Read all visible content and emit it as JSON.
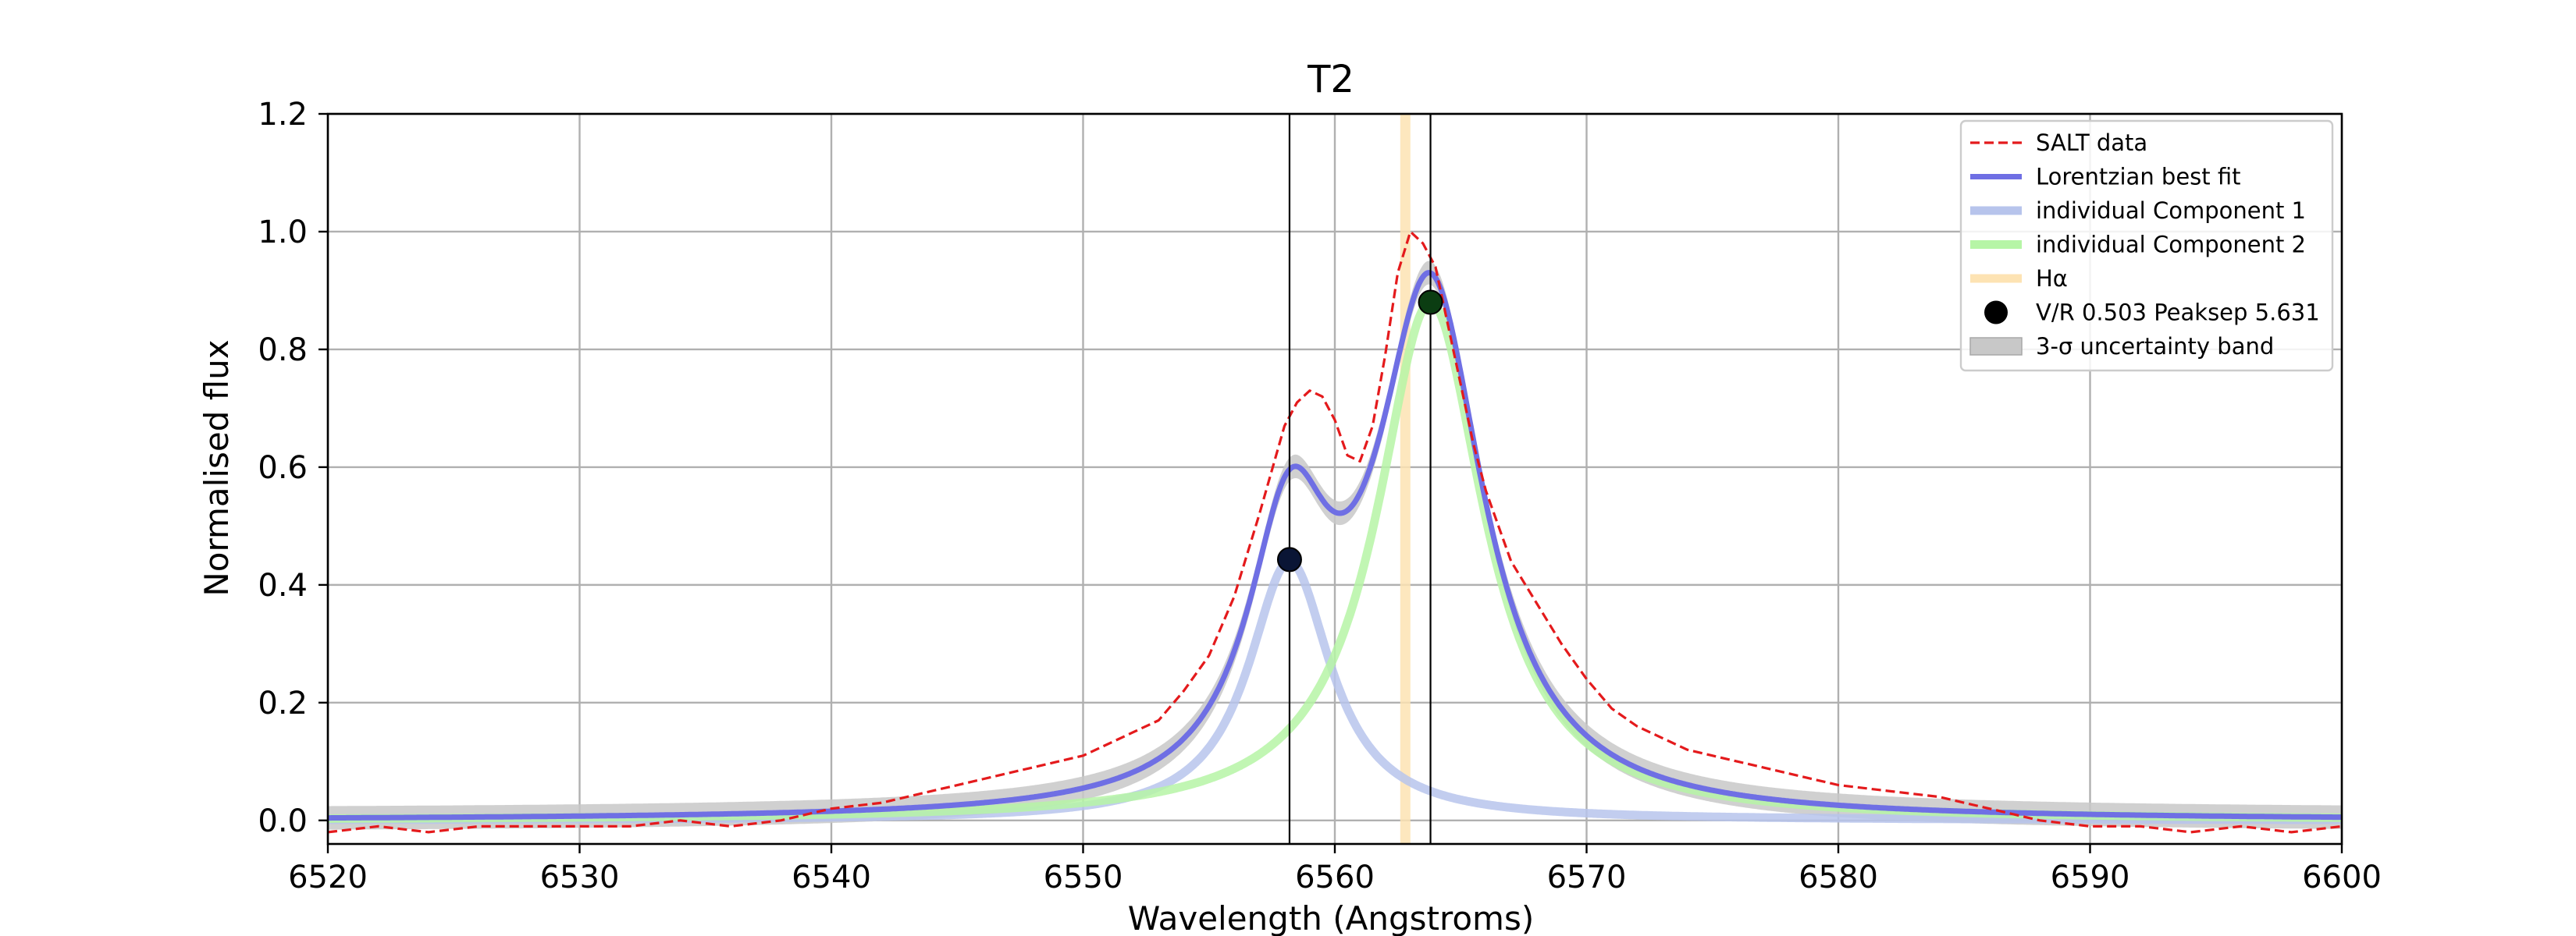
{
  "chart_data": {
    "type": "line",
    "title": "T2",
    "xlabel": "Wavelength (Angstroms)",
    "ylabel": "Normalised flux",
    "xlim": [
      6520,
      6600
    ],
    "ylim": [
      -0.04,
      1.2
    ],
    "xticks": [
      "6520",
      "6530",
      "6540",
      "6550",
      "6560",
      "6570",
      "6580",
      "6590",
      "6600"
    ],
    "yticks": [
      "0.0",
      "0.2",
      "0.4",
      "0.6",
      "0.8",
      "1.0",
      "1.2"
    ],
    "grid": true,
    "legend_position": "top-right",
    "legend": [
      {
        "label": "SALT data",
        "kind": "dashed-line",
        "color": "#e41a1c"
      },
      {
        "label": "Lorentzian best fit",
        "kind": "line",
        "color": "#6f6fe4"
      },
      {
        "label": "individual Component 1",
        "kind": "thick-line",
        "color": "#b7c4ec"
      },
      {
        "label": "individual Component 2",
        "kind": "thick-line",
        "color": "#b6f5a6"
      },
      {
        "label": "Hα",
        "kind": "thick-line",
        "color": "#fde3b3"
      },
      {
        "label": "V/R 0.503 Peaksep 5.631",
        "kind": "marker",
        "color": "#000000"
      },
      {
        "label": "3-σ uncertainty band",
        "kind": "patch",
        "color": "#c8c8c8"
      }
    ],
    "components": [
      {
        "name": "individual Component 1",
        "center": 6558.2,
        "amplitude": 0.44,
        "hwhm": 2.0,
        "color": "#b7c4ec"
      },
      {
        "name": "individual Component 2",
        "center": 6563.8,
        "amplitude": 0.88,
        "hwhm": 2.6,
        "color": "#b6f5a6"
      }
    ],
    "fit_color": "#6f6fe4",
    "band_halfwidth": 0.02,
    "band_color": "#c8c8c8",
    "halpha_line": {
      "x": 6562.8,
      "color": "#fde3b3"
    },
    "vertical_lines": [
      6558.2,
      6563.8
    ],
    "peak_markers": [
      {
        "x": 6558.2,
        "y": 0.443
      },
      {
        "x": 6563.8,
        "y": 0.88
      }
    ],
    "data_series": {
      "name": "SALT data",
      "color": "#e41a1c",
      "x": [
        6520,
        6522,
        6524,
        6526,
        6528,
        6530,
        6532,
        6534,
        6536,
        6538,
        6540,
        6542,
        6544,
        6546,
        6548,
        6550,
        6552,
        6553,
        6554,
        6555,
        6556,
        6557,
        6558,
        6558.5,
        6559,
        6559.5,
        6560,
        6560.5,
        6561,
        6561.5,
        6562,
        6562.5,
        6563,
        6563.5,
        6564,
        6564.5,
        6565,
        6565.5,
        6566,
        6566.5,
        6567,
        6568,
        6569,
        6570,
        6571,
        6572,
        6574,
        6576,
        6578,
        6580,
        6582,
        6584,
        6586,
        6588,
        6590,
        6592,
        6594,
        6596,
        6598,
        6600
      ],
      "y": [
        -0.02,
        -0.01,
        -0.02,
        -0.01,
        -0.01,
        -0.01,
        -0.01,
        0.0,
        -0.01,
        0.0,
        0.02,
        0.03,
        0.05,
        0.07,
        0.09,
        0.11,
        0.15,
        0.17,
        0.22,
        0.28,
        0.38,
        0.52,
        0.67,
        0.71,
        0.73,
        0.72,
        0.68,
        0.62,
        0.61,
        0.67,
        0.79,
        0.93,
        1.0,
        0.98,
        0.94,
        0.84,
        0.74,
        0.64,
        0.56,
        0.5,
        0.44,
        0.37,
        0.3,
        0.24,
        0.19,
        0.16,
        0.12,
        0.1,
        0.08,
        0.06,
        0.05,
        0.04,
        0.02,
        0.0,
        -0.01,
        -0.01,
        -0.02,
        -0.01,
        -0.02,
        -0.01
      ]
    }
  }
}
